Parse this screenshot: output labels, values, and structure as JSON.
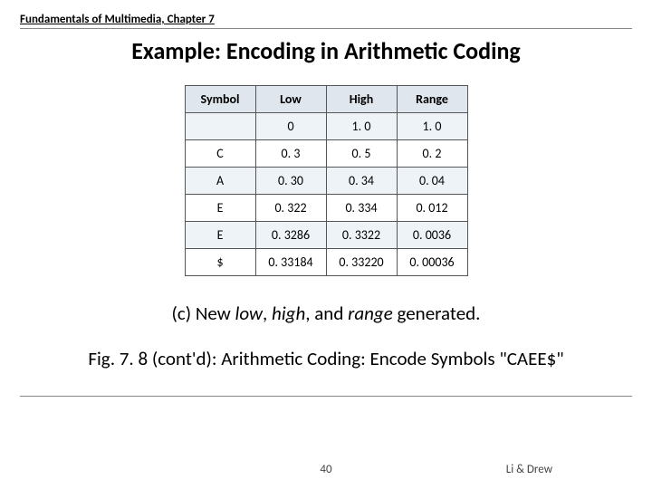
{
  "chapter": "Fundamentals of Multimedia, Chapter 7",
  "title": "Example: Encoding in Arithmetic Coding",
  "table": {
    "headers": [
      "Symbol",
      "Low",
      "High",
      "Range"
    ],
    "rows": [
      {
        "sym": "",
        "low": "0",
        "high": "1. 0",
        "range": "1. 0"
      },
      {
        "sym": "C",
        "low": "0. 3",
        "high": "0. 5",
        "range": "0. 2"
      },
      {
        "sym": "A",
        "low": "0. 30",
        "high": "0. 34",
        "range": "0. 04"
      },
      {
        "sym": "E",
        "low": "0. 322",
        "high": "0. 334",
        "range": "0. 012"
      },
      {
        "sym": "E",
        "low": "0. 3286",
        "high": "0. 3322",
        "range": "0. 0036"
      },
      {
        "sym": "$",
        "low": "0. 33184",
        "high": "0. 33220",
        "range": "0. 00036"
      }
    ]
  },
  "caption_c_pre": "(c) New ",
  "caption_c_i1": "low",
  "caption_c_mid1": ", ",
  "caption_c_i2": "high",
  "caption_c_mid2": ", and ",
  "caption_c_i3": "range",
  "caption_c_post": " generated.",
  "fig_caption": "Fig. 7. 8 (cont'd): Arithmetic Coding: Encode Symbols \"CAEE$\"",
  "page_number": "40",
  "authors": "Li & Drew"
}
